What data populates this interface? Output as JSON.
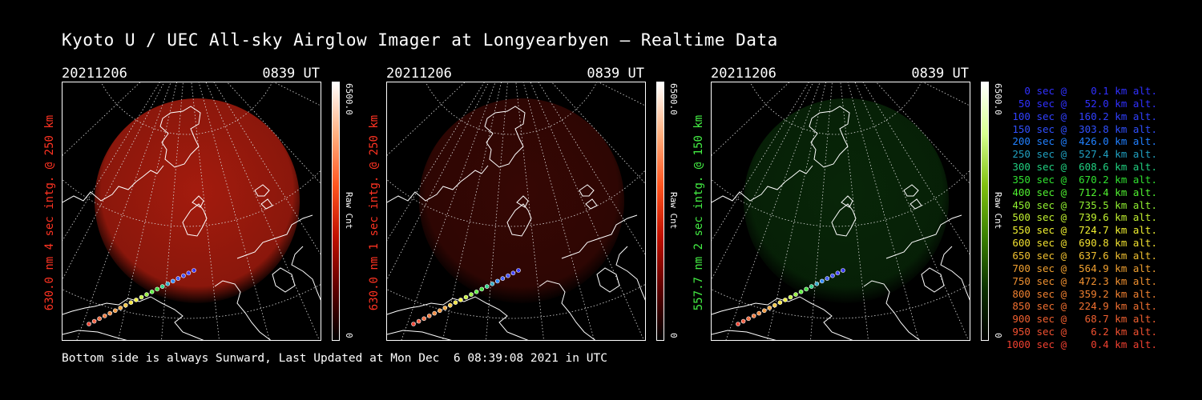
{
  "title": "Kyoto U / UEC All-sky Airglow Imager at Longyearbyen — Realtime Data",
  "footer": "Bottom side is always Sunward, Last Updated at Mon Dec  6 08:39:08 2021 in UTC",
  "panels": [
    {
      "date": "20211206",
      "time": "0839 UT",
      "side_label": "630.0 nm 4 sec intg. @ 250 km",
      "side_color": "#ff3322",
      "cbar_max": "6500.0",
      "cbar_min": "0",
      "cbar_unit": "Raw Cnt",
      "cbar_colors": [
        "#ffffff",
        "#ffb080",
        "#ff5520",
        "#c01000",
        "#600000",
        "#000000"
      ],
      "glow_color": "#c02010",
      "glow_intensity": 0.85
    },
    {
      "date": "20211206",
      "time": "0839 UT",
      "side_label": "630.0 nm 1 sec intg. @ 250 km",
      "side_color": "#ff3322",
      "cbar_max": "6500.0",
      "cbar_min": "0",
      "cbar_unit": "Raw Cnt",
      "cbar_colors": [
        "#ffffff",
        "#ffb080",
        "#ff5520",
        "#c01000",
        "#600000",
        "#000000"
      ],
      "glow_color": "#5a0c06",
      "glow_intensity": 0.6
    },
    {
      "date": "20211206",
      "time": "0839 UT",
      "side_label": "557.7 nm 2 sec intg. @ 150 km",
      "side_color": "#44ee44",
      "cbar_max": "6500.0",
      "cbar_min": "0",
      "cbar_unit": "Raw Cnt",
      "cbar_colors": [
        "#ffffff",
        "#d8ff90",
        "#80c010",
        "#3a8000",
        "#0a3000",
        "#000000"
      ],
      "glow_color": "#0c3a0c",
      "glow_intensity": 0.65
    }
  ],
  "legend": [
    {
      "text": "   0 sec @    0.1 km alt.",
      "color": "#3030ff"
    },
    {
      "text": "  50 sec @   52.0 km alt.",
      "color": "#3030ff"
    },
    {
      "text": " 100 sec @  160.2 km alt.",
      "color": "#3040ff"
    },
    {
      "text": " 150 sec @  303.8 km alt.",
      "color": "#3050ff"
    },
    {
      "text": " 200 sec @  426.0 km alt.",
      "color": "#2080ff"
    },
    {
      "text": " 250 sec @  527.4 km alt.",
      "color": "#20a0c0"
    },
    {
      "text": " 300 sec @  608.6 km alt.",
      "color": "#20d080"
    },
    {
      "text": " 350 sec @  670.2 km alt.",
      "color": "#30e030"
    },
    {
      "text": " 400 sec @  712.4 km alt.",
      "color": "#50f030"
    },
    {
      "text": " 450 sec @  735.5 km alt.",
      "color": "#90f030"
    },
    {
      "text": " 500 sec @  739.6 km alt.",
      "color": "#c0f030"
    },
    {
      "text": " 550 sec @  724.7 km alt.",
      "color": "#f0f030"
    },
    {
      "text": " 600 sec @  690.8 km alt.",
      "color": "#f0e030"
    },
    {
      "text": " 650 sec @  637.6 km alt.",
      "color": "#f0c030"
    },
    {
      "text": " 700 sec @  564.9 km alt.",
      "color": "#f0a030"
    },
    {
      "text": " 750 sec @  472.3 km alt.",
      "color": "#f09030"
    },
    {
      "text": " 800 sec @  359.2 km alt.",
      "color": "#f08030"
    },
    {
      "text": " 850 sec @  224.9 km alt.",
      "color": "#f07030"
    },
    {
      "text": " 900 sec @   68.7 km alt.",
      "color": "#f06030"
    },
    {
      "text": " 950 sec @    6.2 km alt.",
      "color": "#f05030"
    },
    {
      "text": "1000 sec @    0.4 km alt.",
      "color": "#f04030"
    }
  ]
}
